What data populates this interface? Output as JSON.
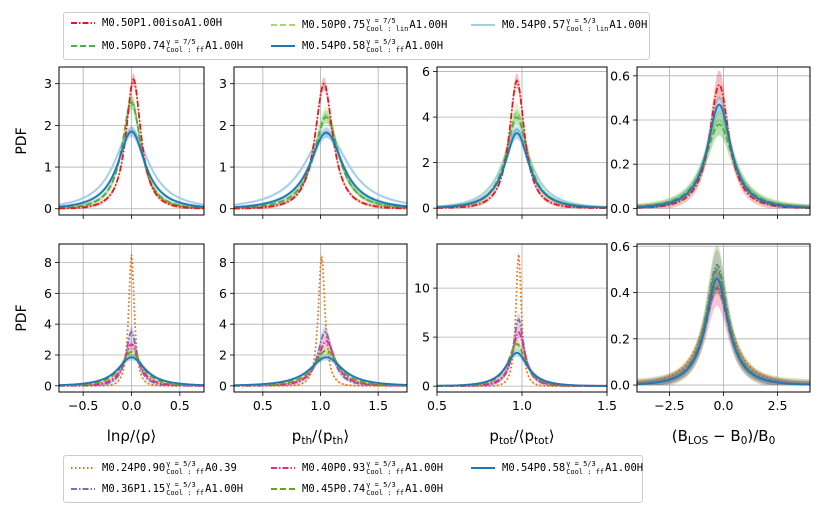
{
  "colors": {
    "iso": "#e41a1c",
    "green_ff": "#4daf4a",
    "lightgreen_lin": "#a6d96a",
    "lightblue_lin": "#a6cee3",
    "blue_ff": "#1f78b4",
    "orange": "#e6700f",
    "purple": "#7570b3",
    "pink": "#e7298a",
    "olive": "#66a61e"
  },
  "top_legend": [
    {
      "pre": "M0.50P1.00isoA1.00H",
      "sup": "",
      "sub": "",
      "post": "",
      "color": "#e41a1c",
      "style": "dashdot"
    },
    {
      "pre": "M0.50P0.74",
      "sup": "γ = 7/5",
      "sub": "Cool : ff",
      "post": "A1.00H",
      "color": "#4daf4a",
      "style": "dashed"
    },
    {
      "pre": "M0.50P0.75",
      "sup": "γ = 7/5",
      "sub": "Cool : lin",
      "post": "A1.00H",
      "color": "#a6d96a",
      "style": "dashed"
    },
    {
      "pre": "M0.54P0.58",
      "sup": "γ = 5/3",
      "sub": "Cool : ff",
      "post": "A1.00H",
      "color": "#1f78b4",
      "style": "solid"
    },
    {
      "pre": "M0.54P0.57",
      "sup": "γ = 5/3",
      "sub": "Cool : lin",
      "post": "A1.00H",
      "color": "#a6cee3",
      "style": "solid"
    }
  ],
  "bottom_legend": [
    {
      "pre": "M0.24P0.90",
      "sup": "γ = 5/3",
      "sub": "Cool : ff",
      "post": "A0.39",
      "color": "#e6700f",
      "style": "dotted"
    },
    {
      "pre": "M0.36P1.15",
      "sup": "γ = 5/3",
      "sub": "Cool : ff",
      "post": "A1.00H",
      "color": "#7570b3",
      "style": "dashdot"
    },
    {
      "pre": "M0.40P0.93",
      "sup": "γ = 5/3",
      "sub": "Cool : ff",
      "post": "A1.00H",
      "color": "#e7298a",
      "style": "dashdot"
    },
    {
      "pre": "M0.45P0.74",
      "sup": "γ = 5/3",
      "sub": "Cool : ff",
      "post": "A1.00H",
      "color": "#66a61e",
      "style": "dashed"
    },
    {
      "pre": "M0.54P0.58",
      "sup": "γ = 5/3",
      "sub": "Cool : ff",
      "post": "A1.00H",
      "color": "#1f78b4",
      "style": "solid"
    }
  ],
  "ylabel": "PDF",
  "chart_data": [
    {
      "type": "line",
      "row": 0,
      "col": 0,
      "xlim": [
        -0.75,
        0.75
      ],
      "ylim": [
        -0.15,
        3.4
      ],
      "yticks": [
        0,
        1,
        2,
        3
      ],
      "xticks": [
        -0.5,
        0.0,
        0.5
      ],
      "show_xticklabels": false,
      "grid": true,
      "series": [
        {
          "legend_index": 4,
          "row_legend": "top",
          "center": 0.0,
          "peak": 1.88,
          "width": 0.28,
          "band": 0.08
        },
        {
          "legend_index": 2,
          "row_legend": "top",
          "center": 0.0,
          "peak": 2.6,
          "width": 0.15,
          "band": 0.15
        },
        {
          "legend_index": 1,
          "row_legend": "top",
          "center": 0.0,
          "peak": 2.55,
          "width": 0.155,
          "band": 0.12
        },
        {
          "legend_index": 0,
          "row_legend": "top",
          "center": 0.02,
          "peak": 3.1,
          "width": 0.12,
          "band": 0.12
        },
        {
          "legend_index": 3,
          "row_legend": "top",
          "center": 0.0,
          "peak": 1.85,
          "width": 0.22,
          "band": 0.1
        }
      ]
    },
    {
      "type": "line",
      "row": 0,
      "col": 1,
      "xlim": [
        0.25,
        1.75
      ],
      "ylim": [
        -0.15,
        3.4
      ],
      "yticks": [
        0,
        1,
        2,
        3
      ],
      "xticks": [
        0.5,
        1.0,
        1.5
      ],
      "show_xticklabels": false,
      "grid": true,
      "series": [
        {
          "legend_index": 4,
          "row_legend": "top",
          "center": 1.05,
          "peak": 1.8,
          "width": 0.3,
          "band": 0.08
        },
        {
          "legend_index": 2,
          "row_legend": "top",
          "center": 1.05,
          "peak": 2.25,
          "width": 0.17,
          "band": 0.15
        },
        {
          "legend_index": 1,
          "row_legend": "top",
          "center": 1.05,
          "peak": 2.2,
          "width": 0.17,
          "band": 0.12
        },
        {
          "legend_index": 0,
          "row_legend": "top",
          "center": 1.03,
          "peak": 3.0,
          "width": 0.12,
          "band": 0.12
        },
        {
          "legend_index": 3,
          "row_legend": "top",
          "center": 1.05,
          "peak": 1.83,
          "width": 0.22,
          "band": 0.1
        }
      ]
    },
    {
      "type": "line",
      "row": 0,
      "col": 2,
      "xlim": [
        0.5,
        1.5
      ],
      "ylim": [
        -0.3,
        6.2
      ],
      "yticks": [
        0,
        2,
        4,
        6
      ],
      "xticks": [
        0.5,
        1.0,
        1.5
      ],
      "show_xticklabels": false,
      "grid": true,
      "series": [
        {
          "legend_index": 4,
          "row_legend": "top",
          "center": 0.97,
          "peak": 3.45,
          "width": 0.13,
          "band": 0.2
        },
        {
          "legend_index": 2,
          "row_legend": "top",
          "center": 0.97,
          "peak": 4.2,
          "width": 0.1,
          "band": 0.3
        },
        {
          "legend_index": 1,
          "row_legend": "top",
          "center": 0.97,
          "peak": 4.0,
          "width": 0.1,
          "band": 0.25
        },
        {
          "legend_index": 0,
          "row_legend": "top",
          "center": 0.97,
          "peak": 5.6,
          "width": 0.07,
          "band": 0.25
        },
        {
          "legend_index": 3,
          "row_legend": "top",
          "center": 0.97,
          "peak": 3.3,
          "width": 0.11,
          "band": 0.2
        }
      ]
    },
    {
      "type": "line",
      "row": 0,
      "col": 3,
      "xlim": [
        -4.0,
        4.0
      ],
      "ylim": [
        -0.03,
        0.64
      ],
      "yticks": [
        0.0,
        0.2,
        0.4,
        0.6
      ],
      "xticks": [
        -2.5,
        0.0,
        2.5
      ],
      "show_xticklabels": false,
      "grid": true,
      "series": [
        {
          "legend_index": 4,
          "row_legend": "top",
          "center": -0.2,
          "peak": 0.4,
          "width": 1.05,
          "band": 0.03
        },
        {
          "legend_index": 2,
          "row_legend": "top",
          "center": -0.2,
          "peak": 0.4,
          "width": 1.0,
          "band": 0.05
        },
        {
          "legend_index": 1,
          "row_legend": "top",
          "center": -0.2,
          "peak": 0.38,
          "width": 1.0,
          "band": 0.04
        },
        {
          "legend_index": 0,
          "row_legend": "top",
          "center": -0.2,
          "peak": 0.56,
          "width": 0.7,
          "band": 0.05
        },
        {
          "legend_index": 3,
          "row_legend": "top",
          "center": -0.2,
          "peak": 0.47,
          "width": 0.85,
          "band": 0.03
        }
      ]
    },
    {
      "type": "line",
      "row": 1,
      "col": 0,
      "xlim": [
        -0.75,
        0.75
      ],
      "ylim": [
        -0.4,
        9.2
      ],
      "yticks": [
        0,
        2,
        4,
        6,
        8
      ],
      "xticks": [
        -0.5,
        0.0,
        0.5
      ],
      "xticklabels": [
        "−0.5",
        "0.0",
        "0.5"
      ],
      "show_xticklabels": true,
      "xlabel": "lnρ/⟨ρ⟩",
      "grid": true,
      "series": [
        {
          "legend_index": 0,
          "row_legend": "bottom",
          "center": 0.0,
          "peak": 8.5,
          "width": 0.045,
          "band": 0.2
        },
        {
          "legend_index": 1,
          "row_legend": "bottom",
          "center": 0.0,
          "peak": 3.5,
          "width": 0.09,
          "band": 0.3
        },
        {
          "legend_index": 2,
          "row_legend": "bottom",
          "center": 0.0,
          "peak": 2.7,
          "width": 0.12,
          "band": 0.25
        },
        {
          "legend_index": 3,
          "row_legend": "bottom",
          "center": 0.0,
          "peak": 2.2,
          "width": 0.17,
          "band": 0.2
        },
        {
          "legend_index": 4,
          "row_legend": "bottom",
          "center": 0.0,
          "peak": 1.85,
          "width": 0.22,
          "band": 0.15
        }
      ]
    },
    {
      "type": "line",
      "row": 1,
      "col": 1,
      "xlim": [
        0.25,
        1.75
      ],
      "ylim": [
        -0.4,
        9.2
      ],
      "yticks": [
        0,
        2,
        4,
        6,
        8
      ],
      "xticks": [
        0.5,
        1.0,
        1.5
      ],
      "xticklabels": [
        "0.5",
        "1.0",
        "1.5"
      ],
      "show_xticklabels": true,
      "xlabel": "p_th/⟨p_th⟩",
      "grid": true,
      "series": [
        {
          "legend_index": 0,
          "row_legend": "bottom",
          "center": 1.01,
          "peak": 8.4,
          "width": 0.045,
          "band": 0.2
        },
        {
          "legend_index": 1,
          "row_legend": "bottom",
          "center": 1.04,
          "peak": 3.5,
          "width": 0.1,
          "band": 0.3
        },
        {
          "legend_index": 2,
          "row_legend": "bottom",
          "center": 1.05,
          "peak": 2.9,
          "width": 0.12,
          "band": 0.25
        },
        {
          "legend_index": 3,
          "row_legend": "bottom",
          "center": 1.05,
          "peak": 2.3,
          "width": 0.16,
          "band": 0.2
        },
        {
          "legend_index": 4,
          "row_legend": "bottom",
          "center": 1.05,
          "peak": 1.85,
          "width": 0.22,
          "band": 0.15
        }
      ]
    },
    {
      "type": "line",
      "row": 1,
      "col": 2,
      "xlim": [
        0.5,
        1.5
      ],
      "ylim": [
        -0.6,
        14.5
      ],
      "yticks": [
        0,
        5,
        10
      ],
      "xticks": [
        0.5,
        1.0,
        1.5
      ],
      "xticklabels": [
        "0.5",
        "1.0",
        "1.5"
      ],
      "show_xticklabels": true,
      "xlabel": "p_tot/⟨p_tot⟩",
      "grid": true,
      "series": [
        {
          "legend_index": 0,
          "row_legend": "bottom",
          "center": 0.98,
          "peak": 13.5,
          "width": 0.025,
          "band": 0.3
        },
        {
          "legend_index": 1,
          "row_legend": "bottom",
          "center": 0.98,
          "peak": 6.8,
          "width": 0.05,
          "band": 0.5
        },
        {
          "legend_index": 2,
          "row_legend": "bottom",
          "center": 0.98,
          "peak": 5.5,
          "width": 0.06,
          "band": 0.5
        },
        {
          "legend_index": 3,
          "row_legend": "bottom",
          "center": 0.97,
          "peak": 4.3,
          "width": 0.08,
          "band": 0.4
        },
        {
          "legend_index": 4,
          "row_legend": "bottom",
          "center": 0.97,
          "peak": 3.4,
          "width": 0.1,
          "band": 0.3
        }
      ]
    },
    {
      "type": "line",
      "row": 1,
      "col": 3,
      "xlim": [
        -4.0,
        4.0
      ],
      "ylim": [
        -0.03,
        0.61
      ],
      "yticks": [
        0.0,
        0.2,
        0.4,
        0.6
      ],
      "xticks": [
        -2.5,
        0.0,
        2.5
      ],
      "xticklabels": [
        "−2.5",
        "0.0",
        "2.5"
      ],
      "show_xticklabels": true,
      "xlabel": "(B_LOS − B_0)/B_0",
      "grid": true,
      "series": [
        {
          "legend_index": 0,
          "row_legend": "bottom",
          "center": -0.3,
          "peak": 0.43,
          "width": 1.0,
          "band": 0.03
        },
        {
          "legend_index": 1,
          "row_legend": "bottom",
          "center": -0.3,
          "peak": 0.52,
          "width": 0.8,
          "band": 0.05
        },
        {
          "legend_index": 2,
          "row_legend": "bottom",
          "center": -0.3,
          "peak": 0.42,
          "width": 0.85,
          "band": 0.06
        },
        {
          "legend_index": 3,
          "row_legend": "bottom",
          "center": -0.3,
          "peak": 0.5,
          "width": 0.8,
          "band": 0.08
        },
        {
          "legend_index": 4,
          "row_legend": "bottom",
          "center": -0.3,
          "peak": 0.46,
          "width": 0.8,
          "band": 0.04
        }
      ]
    }
  ]
}
